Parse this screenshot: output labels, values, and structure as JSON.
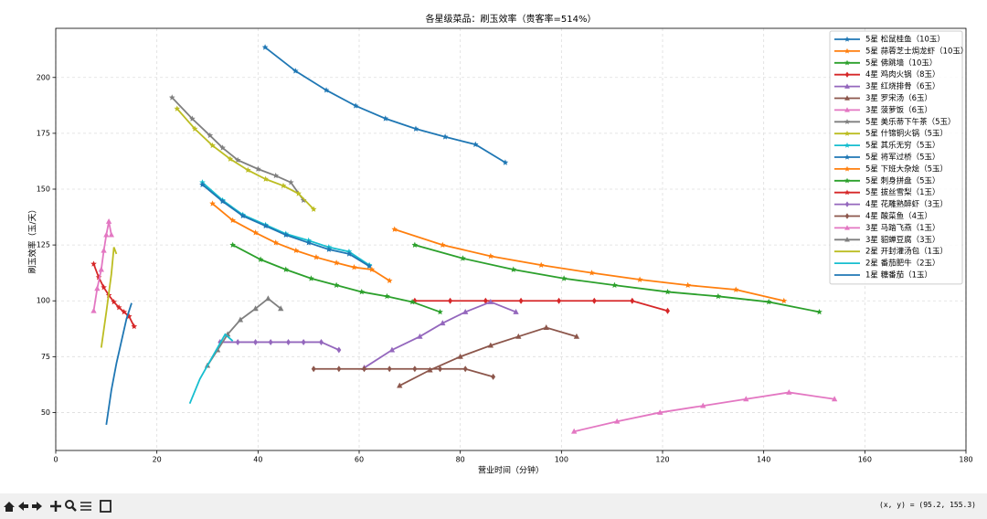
{
  "chart_data": {
    "type": "line",
    "title": "各星级菜品：刷玉效率（贵客率=514%）",
    "x_label": "营业时间（分钟）",
    "y_label": "刷玉效率（玉/天）",
    "xlim": [
      0,
      180
    ],
    "ylim": [
      33,
      222
    ],
    "xticks": [
      0,
      20,
      40,
      60,
      80,
      100,
      120,
      140,
      160,
      180
    ],
    "yticks": [
      50,
      75,
      100,
      125,
      150,
      175,
      200
    ],
    "grid": true,
    "legend": "upper right",
    "series": [
      {
        "name": "5星 松鼠桂鱼（10玉）",
        "color": "#1f77b4",
        "marker": "star",
        "x": [
          41.4,
          47.4,
          53.5,
          59.3,
          65.2,
          71.2,
          77,
          83,
          88.9
        ],
        "values": [
          213.5,
          202.9,
          194.3,
          187.3,
          181.6,
          177,
          173.4,
          170,
          161.9
        ]
      },
      {
        "name": "5星 蒜蓉芝士焗龙虾（10玉）",
        "color": "#ff7f0e",
        "marker": "star",
        "x": [
          67,
          76.5,
          86,
          96,
          106,
          115.5,
          125,
          134.5,
          144
        ],
        "values": [
          132,
          125,
          120,
          116,
          112.5,
          109.5,
          107,
          105,
          100
        ]
      },
      {
        "name": "5星 佛跳墙（10玉）",
        "color": "#2ca02c",
        "marker": "star",
        "x": [
          71,
          80.5,
          90.5,
          100.5,
          110.5,
          121,
          131,
          141,
          151
        ],
        "values": [
          125,
          119,
          114,
          110,
          107,
          104,
          102,
          99.5,
          95
        ]
      },
      {
        "name": "4星 鸡肉火锅（8玉）",
        "color": "#d62728",
        "marker": "diamond",
        "x": [
          71,
          78,
          85,
          92,
          99.5,
          106.5,
          114,
          121
        ],
        "values": [
          100,
          100,
          100,
          100,
          100,
          100,
          100,
          95.5
        ]
      },
      {
        "name": "3星 红烧排骨（6玉）",
        "color": "#9467bd",
        "marker": "triangle",
        "x": [
          61,
          66.5,
          72,
          76.5,
          81,
          86,
          91
        ],
        "values": [
          70,
          78,
          84,
          90,
          95,
          99.5,
          95
        ]
      },
      {
        "name": "3星 罗宋汤（6玉）",
        "color": "#8c564b",
        "marker": "triangle",
        "x": [
          68,
          74,
          80,
          86,
          91.5,
          97,
          103
        ],
        "values": [
          62,
          69,
          75,
          80,
          84,
          88,
          84
        ]
      },
      {
        "name": "3星 菠萝饭（6玉）",
        "color": "#e377c2",
        "marker": "triangle",
        "x": [
          102.5,
          111,
          119.5,
          128,
          136.5,
          145,
          154
        ],
        "values": [
          41.5,
          46,
          50,
          53,
          56,
          59,
          56
        ]
      },
      {
        "name": "5星 美乐蒂下午茶（5玉）",
        "color": "#7f7f7f",
        "marker": "star",
        "x": [
          23,
          27,
          30.5,
          33,
          36,
          40,
          43.5,
          46.5,
          49
        ],
        "values": [
          191,
          181.5,
          174,
          168.5,
          163,
          159,
          156,
          153,
          145
        ]
      },
      {
        "name": "5星 什锦铜火锅（5玉）",
        "color": "#bcbd22",
        "marker": "star",
        "x": [
          24,
          27.5,
          31,
          34.5,
          38,
          41.5,
          45,
          48,
          51
        ],
        "values": [
          186,
          177,
          169.5,
          163.5,
          158.5,
          154.5,
          151.5,
          148,
          141
        ]
      },
      {
        "name": "5星 其乐无穷（5玉）",
        "color": "#17becf",
        "marker": "star",
        "x": [
          29,
          33,
          37,
          41.5,
          45.5,
          50,
          54,
          58,
          62
        ],
        "values": [
          153,
          145,
          138.5,
          134,
          130,
          127,
          124,
          122,
          116
        ]
      },
      {
        "name": "5星 将军过桥（5玉）",
        "color": "#1f77b4",
        "marker": "star",
        "x": [
          29,
          33,
          37,
          41.5,
          45.5,
          50,
          54,
          58,
          62
        ],
        "values": [
          152,
          144.5,
          138,
          133.5,
          129.5,
          126,
          123,
          121,
          115.5
        ]
      },
      {
        "name": "5星 下班大杂烩（5玉）",
        "color": "#ff7f0e",
        "marker": "star",
        "x": [
          31,
          35,
          39.5,
          43.5,
          47.5,
          51.5,
          55.5,
          59,
          62.5,
          66
        ],
        "values": [
          143.5,
          136,
          130.5,
          126,
          122.5,
          119.5,
          117,
          115,
          114,
          109
        ]
      },
      {
        "name": "5星 刺身拼盘（5玉）",
        "color": "#2ca02c",
        "marker": "star",
        "x": [
          35,
          40.5,
          45.5,
          50.5,
          55.5,
          60.5,
          65.5,
          70.5,
          76
        ],
        "values": [
          125,
          118.5,
          114,
          110,
          107,
          104,
          102,
          99.5,
          95
        ]
      },
      {
        "name": "5星 拔丝雪梨（1玉）",
        "color": "#d62728",
        "marker": "star",
        "x": [
          7.5,
          8.5,
          9.5,
          10.5,
          11.5,
          12.5,
          13.5,
          14.5,
          15.5
        ],
        "values": [
          116.5,
          110.5,
          106,
          102.5,
          99.5,
          97,
          95,
          93,
          88.5
        ]
      },
      {
        "name": "4星 花雕熟醉虾（3玉）",
        "color": "#9467bd",
        "marker": "diamond",
        "x": [
          32.5,
          36,
          39.5,
          42.5,
          46,
          49,
          52.5,
          56
        ],
        "values": [
          81.5,
          81.5,
          81.5,
          81.5,
          81.5,
          81.5,
          81.5,
          78
        ]
      },
      {
        "name": "4星 酸菜鱼（4玉）",
        "color": "#8c564b",
        "marker": "diamond",
        "x": [
          51,
          56,
          61,
          66,
          71,
          76,
          81,
          86.5
        ],
        "values": [
          69.5,
          69.5,
          69.5,
          69.5,
          69.5,
          69.5,
          69.5,
          66
        ]
      },
      {
        "name": "3星 马踏飞燕（1玉）",
        "color": "#e377c2",
        "marker": "triangle",
        "x": [
          7.5,
          8.2,
          9,
          9.5,
          10,
          10.5,
          11
        ],
        "values": [
          95.5,
          105.5,
          114,
          122.5,
          129.5,
          135.5,
          129.5
        ]
      },
      {
        "name": "3星 貂蝉豆腐（3玉）",
        "color": "#7f7f7f",
        "marker": "triangle",
        "x": [
          30,
          32,
          34,
          36.5,
          39.5,
          42,
          44.5
        ],
        "values": [
          71,
          78,
          85,
          91.5,
          96.5,
          101,
          96.5
        ]
      },
      {
        "name": "2星 开封灌汤包（1玉）",
        "color": "#bcbd22",
        "x": [
          9,
          10,
          11,
          11.5,
          12
        ],
        "values": [
          79,
          95,
          112,
          124,
          121
        ]
      },
      {
        "name": "2星 番茄肥牛（2玉）",
        "color": "#17becf",
        "x": [
          26.5,
          28.5,
          30.5,
          32,
          33.5,
          35
        ],
        "values": [
          54,
          65,
          73,
          79,
          85,
          82
        ]
      },
      {
        "name": "1星 糖番茄（1玉）",
        "color": "#1f77b4",
        "x": [
          10,
          11,
          12,
          13,
          14,
          15
        ],
        "values": [
          44.5,
          60,
          72,
          82,
          92,
          99
        ]
      }
    ]
  },
  "toolbar": {
    "status": "(x, y) = (95.2, 155.3)"
  }
}
